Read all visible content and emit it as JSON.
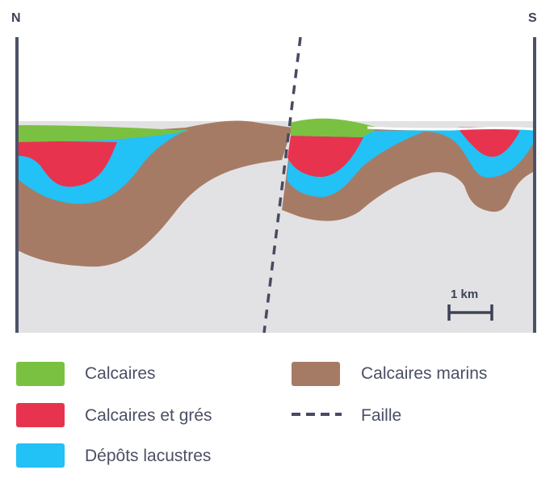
{
  "compass": {
    "north": "N",
    "south": "S"
  },
  "scale": {
    "label": "1 km"
  },
  "colors": {
    "calcaires": "#7ac142",
    "calcaires_gres": "#e8334f",
    "depots_lacustres": "#22c1f6",
    "calcaires_marins": "#a67b66",
    "substratum": "#e2e2e4",
    "faille": "#474b62",
    "border": "#4d5268"
  },
  "legend": [
    {
      "label": "Calcaires",
      "color": "#7ac142",
      "kind": "swatch"
    },
    {
      "label": "Calcaires et grés",
      "color": "#e8334f",
      "kind": "swatch"
    },
    {
      "label": "Dépôts lacustres",
      "color": "#22c1f6",
      "kind": "swatch"
    },
    {
      "label": "Calcaires marins",
      "color": "#a67b66",
      "kind": "swatch"
    },
    {
      "label": "Faille",
      "color": "#474b62",
      "kind": "dashed-line"
    }
  ]
}
